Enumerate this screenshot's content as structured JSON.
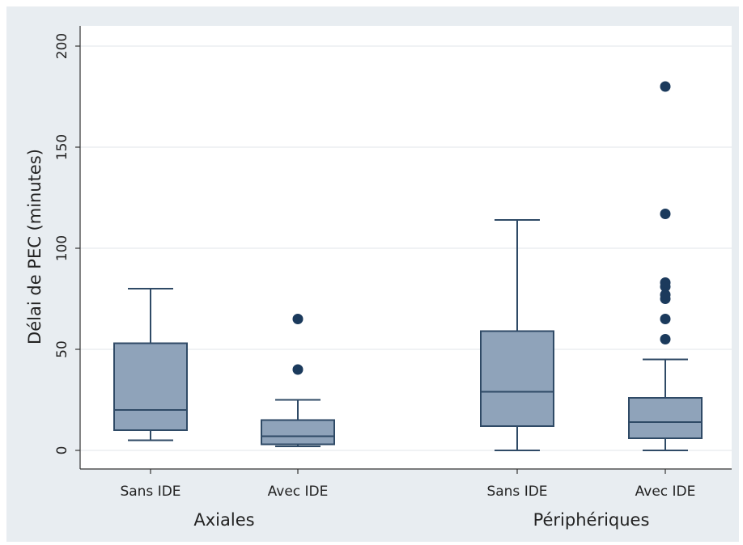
{
  "chart_data": {
    "type": "box",
    "title": "",
    "ylabel": "Délai de PEC (minutes)",
    "ylim": [
      0,
      200
    ],
    "yticks": [
      0,
      50,
      100,
      150,
      200
    ],
    "grid": true,
    "categories": [
      "Sans IDE",
      "Avec IDE",
      "Sans IDE",
      "Avec IDE"
    ],
    "groups": [
      {
        "label": "Axiales",
        "categories": [
          0,
          1
        ]
      },
      {
        "label": "Périphériques",
        "categories": [
          2,
          3
        ]
      }
    ],
    "boxes": [
      {
        "category": "Sans IDE",
        "group": "Axiales",
        "whisker_low": 5,
        "q1": 10,
        "median": 20,
        "q3": 53,
        "whisker_high": 80,
        "outliers": []
      },
      {
        "category": "Avec IDE",
        "group": "Axiales",
        "whisker_low": 2,
        "q1": 3,
        "median": 7,
        "q3": 15,
        "whisker_high": 25,
        "outliers": [
          40,
          65
        ]
      },
      {
        "category": "Sans IDE",
        "group": "Périphériques",
        "whisker_low": 0,
        "q1": 12,
        "median": 29,
        "q3": 59,
        "whisker_high": 114,
        "outliers": []
      },
      {
        "category": "Avec IDE",
        "group": "Périphériques",
        "whisker_low": 0,
        "q1": 6,
        "median": 14,
        "q3": 26,
        "whisker_high": 45,
        "outliers": [
          55,
          65,
          75,
          77,
          81,
          83,
          117,
          180
        ]
      }
    ],
    "colors": {
      "box_fill": "#8fa3ba",
      "box_stroke": "#2f4a66",
      "outlier": "#1b3a5c",
      "grid": "#e6eaee",
      "outer_background": "#e8edf1",
      "plot_background": "#ffffff"
    }
  }
}
